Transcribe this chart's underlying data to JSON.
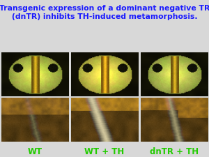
{
  "title_line1": "Transgenic expression of a dominant negative TR",
  "title_line2": "(dnTR) inhibits TH-induced metamorphosis.",
  "title_color": "#1a1aff",
  "title_fontsize": 7.8,
  "title_bold": true,
  "background_color": "#d8d8d8",
  "label_color": "#22cc00",
  "label_fontsize": 8.5,
  "label_bold": true,
  "labels": [
    "WT",
    "WT + TH",
    "dnTR + TH"
  ],
  "n_rows": 2,
  "n_cols": 3
}
